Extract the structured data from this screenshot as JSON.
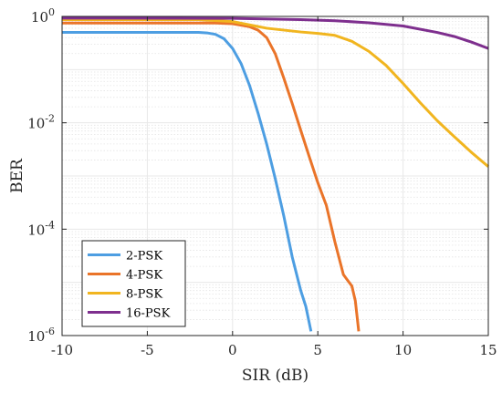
{
  "chart_data": {
    "type": "line",
    "xlabel": "SIR (dB)",
    "ylabel": "BER",
    "xlim": [
      -10,
      15
    ],
    "ylim": [
      1e-06,
      1
    ],
    "yscale": "log",
    "grid": true,
    "minor_grid": true,
    "legend_position": "bottom-left",
    "x_ticks": [
      -10,
      -5,
      0,
      5,
      10,
      15
    ],
    "x_tick_labels": [
      "-10",
      "-5",
      "0",
      "5",
      "10",
      "15"
    ],
    "y_ticks": [
      {
        "value": 1,
        "base": "10",
        "exp": "0"
      },
      {
        "value": 0.01,
        "base": "10",
        "exp": "-2"
      },
      {
        "value": 0.0001,
        "base": "10",
        "exp": "-4"
      },
      {
        "value": 1e-06,
        "base": "10",
        "exp": "-6"
      }
    ],
    "series": [
      {
        "name": "2-PSK",
        "color": "#4d9ee2",
        "points": [
          [
            -10,
            0.5
          ],
          [
            -2,
            0.5
          ],
          [
            -1.5,
            0.49
          ],
          [
            -1,
            0.46
          ],
          [
            -0.5,
            0.38
          ],
          [
            0,
            0.25
          ],
          [
            0.5,
            0.13
          ],
          [
            1,
            0.05
          ],
          [
            1.5,
            0.015
          ],
          [
            2,
            0.004
          ],
          [
            2.5,
            0.0009
          ],
          [
            3,
            0.00018
          ],
          [
            3.5,
            3e-05
          ],
          [
            4,
            7e-06
          ],
          [
            4.3,
            3.5e-06
          ],
          [
            4.6,
            1.2e-06
          ]
        ]
      },
      {
        "name": "4-PSK",
        "color": "#ea7429",
        "points": [
          [
            -10,
            0.75
          ],
          [
            -1,
            0.75
          ],
          [
            0,
            0.73
          ],
          [
            1,
            0.64
          ],
          [
            1.5,
            0.55
          ],
          [
            2,
            0.4
          ],
          [
            2.5,
            0.2
          ],
          [
            3,
            0.07
          ],
          [
            3.5,
            0.023
          ],
          [
            4,
            0.0072
          ],
          [
            4.5,
            0.0023
          ],
          [
            5,
            0.00075
          ],
          [
            5.5,
            0.00028
          ],
          [
            6,
            5.8e-05
          ],
          [
            6.5,
            1.4e-05
          ],
          [
            7,
            8.5e-06
          ],
          [
            7.2,
            4.5e-06
          ],
          [
            7.4,
            1.2e-06
          ]
        ]
      },
      {
        "name": "8-PSK",
        "color": "#f1b51f",
        "points": [
          [
            -10,
            0.87
          ],
          [
            -2,
            0.87
          ],
          [
            0,
            0.8
          ],
          [
            2,
            0.6
          ],
          [
            4,
            0.51
          ],
          [
            5,
            0.48
          ],
          [
            6,
            0.44
          ],
          [
            7,
            0.34
          ],
          [
            8,
            0.22
          ],
          [
            9,
            0.12
          ],
          [
            10,
            0.055
          ],
          [
            11,
            0.024
          ],
          [
            12,
            0.011
          ],
          [
            13,
            0.0055
          ],
          [
            14,
            0.0028
          ],
          [
            15,
            0.0015
          ]
        ]
      },
      {
        "name": "16-PSK",
        "color": "#7e2f8e",
        "points": [
          [
            -10,
            0.93
          ],
          [
            0,
            0.92
          ],
          [
            4,
            0.87
          ],
          [
            6,
            0.83
          ],
          [
            8,
            0.76
          ],
          [
            10,
            0.66
          ],
          [
            12,
            0.5
          ],
          [
            13,
            0.42
          ],
          [
            14,
            0.33
          ],
          [
            15,
            0.25
          ]
        ]
      }
    ]
  }
}
